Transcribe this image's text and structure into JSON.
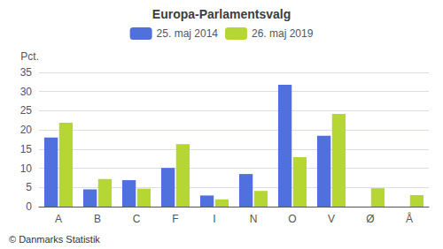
{
  "chart_data": {
    "type": "bar",
    "title": "Europa-Parlamentsvalg",
    "ylabel": "Pct.",
    "footer": "© Danmarks Statistik",
    "categories": [
      "A",
      "B",
      "C",
      "F",
      "I",
      "N",
      "O",
      "V",
      "Ø",
      "Å"
    ],
    "series": [
      {
        "name": "25. maj 2014",
        "values": [
          18.0,
          4.5,
          6.9,
          10.1,
          2.9,
          8.5,
          31.8,
          18.5,
          0.0,
          0.0
        ]
      },
      {
        "name": "26. maj 2019",
        "values": [
          21.9,
          7.2,
          4.7,
          16.3,
          1.9,
          4.1,
          12.9,
          24.2,
          4.8,
          3.0
        ]
      }
    ],
    "ylim": [
      0,
      35
    ],
    "yticks": [
      0,
      5,
      10,
      15,
      20,
      25,
      30,
      35
    ],
    "grid": true,
    "legend": "top"
  }
}
